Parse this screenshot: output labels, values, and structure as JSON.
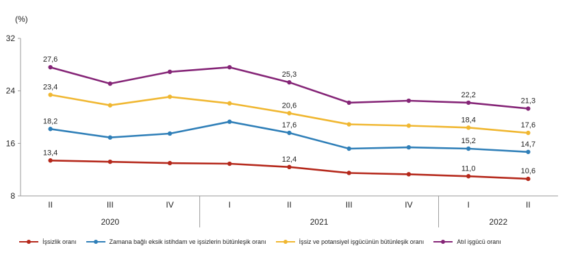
{
  "chart_data": {
    "type": "line",
    "ylabel": "(%)",
    "ylim": [
      8,
      32
    ],
    "yticks": [
      8,
      16,
      24,
      32
    ],
    "grid": false,
    "legend_position": "bottom",
    "categories": [
      "II",
      "III",
      "IV",
      "I",
      "II",
      "III",
      "IV",
      "I",
      "II"
    ],
    "years": [
      {
        "label": "2020",
        "span": 3
      },
      {
        "label": "2021",
        "span": 4
      },
      {
        "label": "2022",
        "span": 2
      }
    ],
    "series": [
      {
        "name": "İşsizlik oranı",
        "color": "#b5281b",
        "values": [
          13.4,
          13.2,
          13.0,
          12.9,
          12.4,
          11.5,
          11.3,
          11.0,
          10.6
        ],
        "labels": [
          "13,4",
          "",
          "",
          "",
          "12,4",
          "",
          "",
          "11,0",
          "10,6"
        ]
      },
      {
        "name": "Zamana bağlı eksik istihdam ve işsizlerin bütünleşik oranı",
        "color": "#2f7fb8",
        "values": [
          18.2,
          16.9,
          17.5,
          19.3,
          17.6,
          15.2,
          15.4,
          15.2,
          14.7
        ],
        "labels": [
          "18,2",
          "",
          "",
          "",
          "17,6",
          "",
          "",
          "15,2",
          "14,7"
        ]
      },
      {
        "name": "İşsiz ve potansiyel işgücünün bütünleşik oranı",
        "color": "#f0b731",
        "values": [
          23.4,
          21.8,
          23.1,
          22.1,
          20.6,
          18.9,
          18.7,
          18.4,
          17.6
        ],
        "labels": [
          "23,4",
          "",
          "",
          "",
          "20,6",
          "",
          "",
          "18,4",
          "17,6"
        ]
      },
      {
        "name": "Atıl işgücü oranı",
        "color": "#852577",
        "values": [
          27.6,
          25.1,
          26.9,
          27.6,
          25.3,
          22.2,
          22.5,
          22.2,
          21.3
        ],
        "labels": [
          "27,6",
          "",
          "",
          "",
          "25,3",
          "",
          "",
          "22,2",
          "21,3"
        ]
      }
    ]
  }
}
